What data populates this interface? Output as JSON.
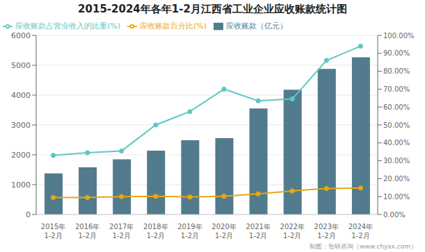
{
  "chart_data": {
    "type": "bar",
    "title": "2015-2024年各年1-2月江西省工业企业应收账款统计图",
    "categories": [
      "2015年\n1-2月",
      "2016年\n1-2月",
      "2017年\n1-2月",
      "2018年\n1-2月",
      "2019年\n1-2月",
      "2020年\n1-2月",
      "2021年\n1-2月",
      "2022年\n1-2月",
      "2023年\n1-2月",
      "2024年\n1-2月"
    ],
    "series": [
      {
        "name": "应收账款（亿元）",
        "type": "bar",
        "color": "#527B8D",
        "values": [
          1380,
          1580,
          1850,
          2140,
          2490,
          2560,
          3550,
          4180,
          4880,
          5270
        ]
      },
      {
        "name": "应收账款百分比(%)",
        "type": "line",
        "color": "#E8A810",
        "marker": "circle",
        "axis": "y2",
        "values": [
          9.5,
          9.5,
          10.0,
          10.2,
          9.8,
          10.2,
          11.5,
          13.2,
          14.5,
          14.8
        ]
      },
      {
        "name": "应收账款占营业收入的比重(%)",
        "type": "line",
        "color": "#5EC8C2",
        "marker": "circle",
        "axis": "y2",
        "values": [
          33.0,
          34.5,
          35.5,
          50.0,
          57.5,
          70.0,
          63.5,
          64.5,
          86.0,
          94.0
        ]
      }
    ],
    "ylim": [
      0,
      6000
    ],
    "yticks": [
      0,
      1000,
      2000,
      3000,
      4000,
      5000,
      6000
    ],
    "y2lim": [
      0,
      100
    ],
    "y2ticks": [
      {
        "value": 0,
        "label": "0.00%"
      },
      {
        "value": 10,
        "label": "10.00%"
      },
      {
        "value": 20,
        "label": "20.00%"
      },
      {
        "value": 30,
        "label": "30.00%"
      },
      {
        "value": 40,
        "label": "40.00%"
      },
      {
        "value": 50,
        "label": "50.00%"
      },
      {
        "value": 60,
        "label": "60.00%"
      },
      {
        "value": 70,
        "label": "70.00%"
      },
      {
        "value": 80,
        "label": "80.00%"
      },
      {
        "value": 90,
        "label": "90.00%"
      },
      {
        "value": 100,
        "label": "100.00%"
      }
    ],
    "grid": true,
    "legend": "upper left",
    "annotations": [
      "制图：智研咨询（www.chyxx.com）"
    ]
  }
}
